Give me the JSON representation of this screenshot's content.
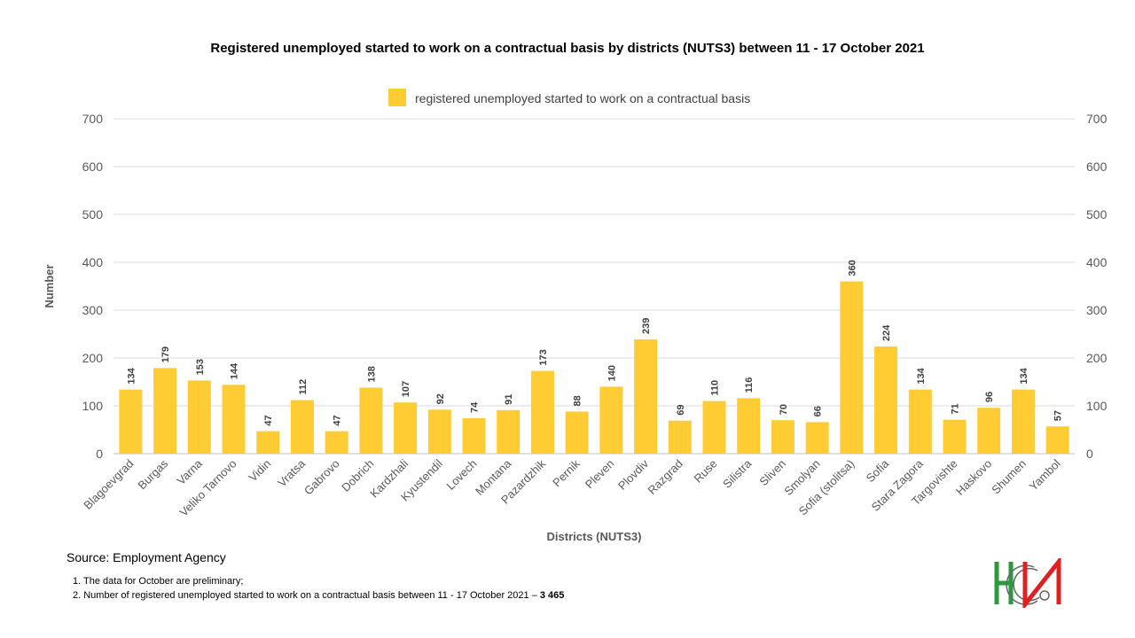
{
  "chart_data": {
    "type": "bar",
    "title": "Registered unemployed started to work on a contractual basis by districts (NUTS3) between 11 - 17 October 2021",
    "xlabel": "Districts (NUTS3)",
    "ylabel": "Number",
    "ylim": [
      0,
      700
    ],
    "yticks": [
      0,
      100,
      200,
      300,
      400,
      500,
      600,
      700
    ],
    "grid": true,
    "legend_placement": "top",
    "bar_color": "#FFCC33",
    "categories": [
      "Blagoevgrad",
      "Burgas",
      "Varna",
      "Veliko Tarnovo",
      "Vidin",
      "Vratsa",
      "Gabrovo",
      "Dobrich",
      "Kardzhali",
      "Kyustendil",
      "Lovech",
      "Montana",
      "Pazardzhik",
      "Pernik",
      "Pleven",
      "Plovdiv",
      "Razgrad",
      "Ruse",
      "Silistra",
      "Sliven",
      "Smolyan",
      "Sofia (stolitsa)",
      "Sofia",
      "Stara Zagora",
      "Targovishte",
      "Haskovo",
      "Shumen",
      "Yambol"
    ],
    "series": [
      {
        "name": "registered unemployed started to work on a contractual basis",
        "values": [
          134,
          179,
          153,
          144,
          47,
          112,
          47,
          138,
          107,
          92,
          74,
          91,
          173,
          88,
          140,
          239,
          69,
          110,
          116,
          70,
          66,
          360,
          224,
          134,
          71,
          96,
          134,
          57
        ]
      }
    ]
  },
  "footer": {
    "source": "Source: Employment  Agency",
    "note1": "1.  The data for October are preliminary;",
    "note2_text": "2.  Number  of registered unemployed started to work on a contractual basis between 11 - 17 October 2021 – ",
    "note2_total": "3 465"
  }
}
